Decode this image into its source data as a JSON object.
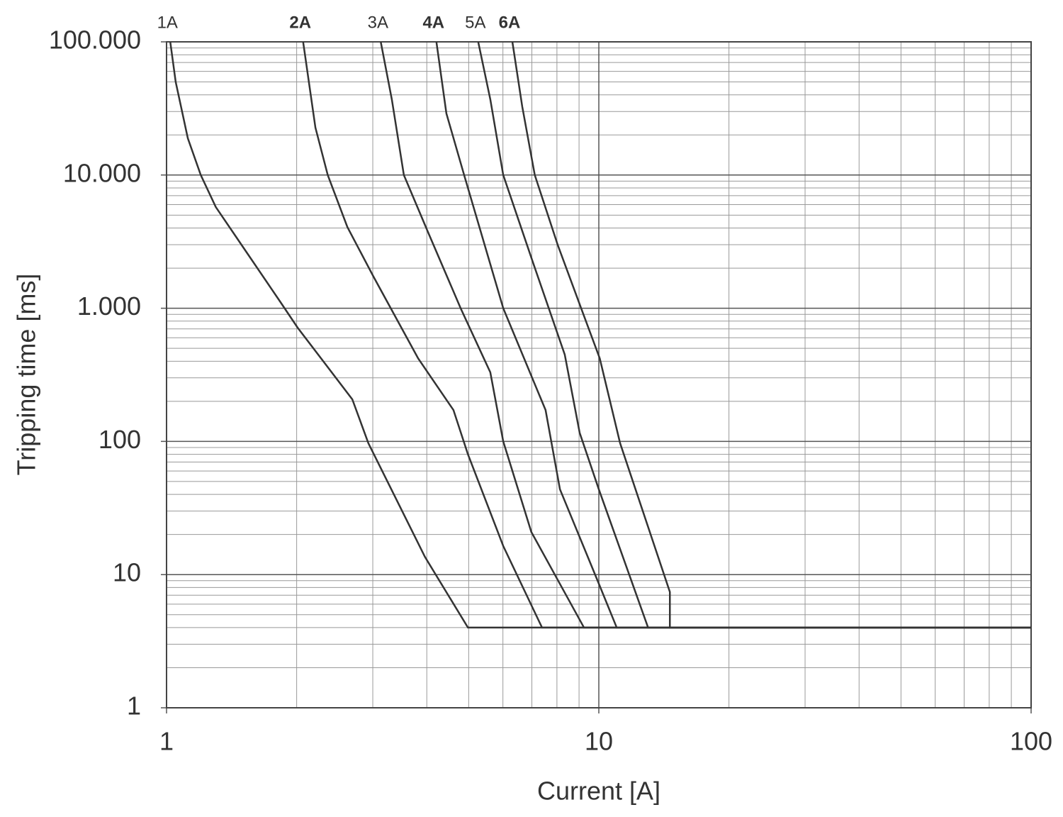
{
  "chart_data": {
    "type": "line",
    "x_label": "Current [A]",
    "y_label": "Tripping time [ms]",
    "xlog": true,
    "ylog": true,
    "grid": true,
    "color": "#333333",
    "xlim": [
      1,
      100
    ],
    "ylim": [
      1,
      100000
    ],
    "xticks": [
      1,
      10,
      100
    ],
    "yticks": [
      1,
      10,
      100,
      {
        "value": 1000,
        "label": "1.000"
      },
      {
        "value": 10000,
        "label": "10.000"
      },
      {
        "value": 100000,
        "label": "100.000"
      }
    ],
    "series": [
      {
        "name": "1A",
        "bold": false,
        "x": [
          1.02,
          1.05,
          1.12,
          1.2,
          1.3,
          1.49,
          1.83,
          2.01,
          2.69,
          2.93,
          3.96,
          4.98,
          100
        ],
        "values": [
          100000,
          50000,
          18900,
          10000,
          5750,
          3000,
          1125,
          715,
          207,
          97,
          13.6,
          4,
          4
        ]
      },
      {
        "name": "2A",
        "bold": true,
        "x": [
          2.07,
          2.21,
          2.36,
          2.62,
          3.01,
          3.82,
          4.61,
          4.98,
          6.01,
          7.39,
          100
        ],
        "values": [
          100000,
          22700,
          10000,
          4070,
          1730,
          420,
          172,
          80,
          16.4,
          4,
          4
        ]
      },
      {
        "name": "3A",
        "bold": false,
        "x": [
          3.13,
          3.32,
          3.54,
          4.01,
          4.79,
          5.61,
          6.01,
          6.98,
          9.24,
          100
        ],
        "values": [
          100000,
          37000,
          10000,
          3840,
          1000,
          330,
          100,
          20.9,
          4,
          4
        ]
      },
      {
        "name": "4A",
        "bold": true,
        "x": [
          4.21,
          4.44,
          4.88,
          6.01,
          7.53,
          8.13,
          10,
          11,
          100
        ],
        "values": [
          100000,
          29000,
          10000,
          1000,
          172,
          43.7,
          8.55,
          4,
          4
        ]
      },
      {
        "name": "5A",
        "bold": false,
        "x": [
          5.26,
          5.61,
          6.01,
          7.04,
          8.34,
          9.03,
          10,
          13,
          100
        ],
        "values": [
          100000,
          37000,
          10000,
          2210,
          449,
          116,
          43.7,
          4,
          4
        ]
      },
      {
        "name": "6A",
        "bold": true,
        "x": [
          6.31,
          6.65,
          7.11,
          8.03,
          9.1,
          10.05,
          11.2,
          14.6,
          14.6,
          100
        ],
        "values": [
          100000,
          32700,
          10000,
          3000,
          1000,
          420,
          97,
          7.4,
          4,
          4
        ]
      }
    ]
  }
}
